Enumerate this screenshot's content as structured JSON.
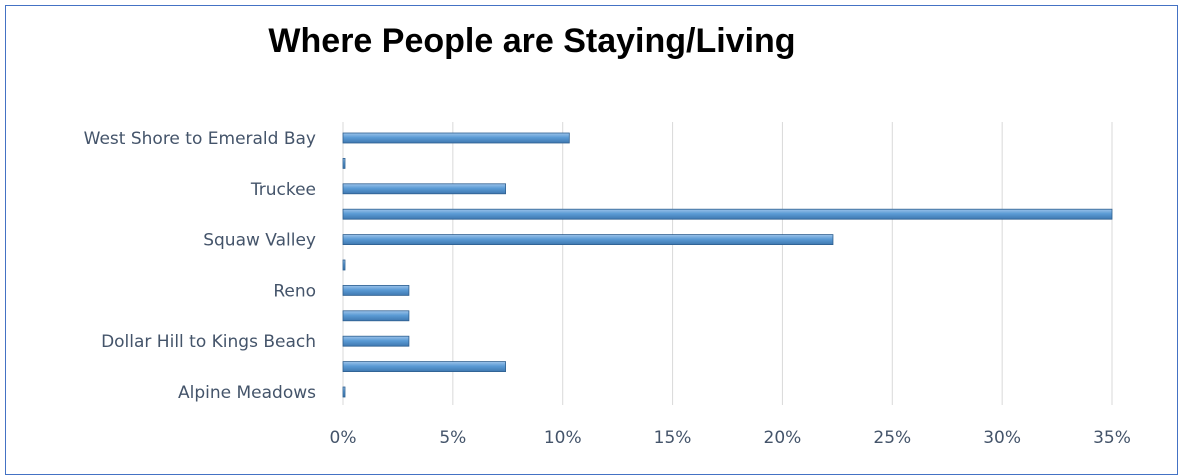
{
  "chart_data": {
    "type": "bar",
    "orientation": "horizontal",
    "title": "Where People are Staying/Living",
    "categories": [
      "West Shore to Emerald Bay",
      "",
      "Truckee",
      "",
      "Squaw Valley",
      "",
      "Reno",
      "",
      "Dollar Hill to Kings Beach",
      "",
      "Alpine Meadows"
    ],
    "values": [
      10.3,
      0,
      7.4,
      35,
      22.3,
      0,
      3,
      3,
      3,
      7.4,
      0
    ],
    "xlim": [
      0,
      35
    ],
    "xticks": [
      "0%",
      "5%",
      "10%",
      "15%",
      "20%",
      "25%",
      "30%",
      "35%"
    ],
    "grid": true,
    "bar_color": "#5b9bd5"
  }
}
